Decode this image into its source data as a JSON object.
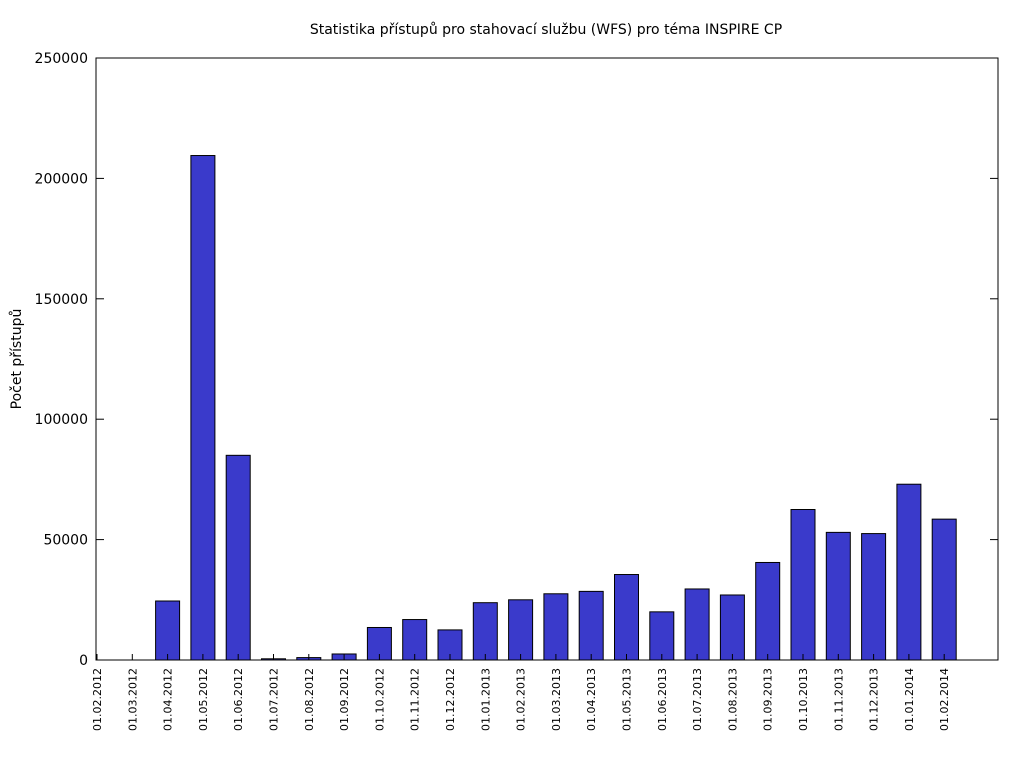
{
  "chart_data": {
    "type": "bar",
    "title": "Statistika přístupů pro stahovací službu (WFS) pro téma INSPIRE CP",
    "xlabel": "",
    "ylabel": "Počet přístupů",
    "ylim": [
      0,
      250000
    ],
    "yticks": [
      "0",
      "50000",
      "100000",
      "150000",
      "200000",
      "250000"
    ],
    "grid": false,
    "bar_color": "#3a3acb",
    "categories": [
      "01.02.2012",
      "01.03.2012",
      "01.04.2012",
      "01.05.2012",
      "01.06.2012",
      "01.07.2012",
      "01.08.2012",
      "01.09.2012",
      "01.10.2012",
      "01.11.2012",
      "01.12.2012",
      "01.01.2013",
      "01.02.2013",
      "01.03.2013",
      "01.04.2013",
      "01.05.2013",
      "01.06.2013",
      "01.07.2013",
      "01.08.2013",
      "01.09.2013",
      "01.10.2013",
      "01.11.2013",
      "01.12.2013",
      "01.01.2014",
      "01.02.2014"
    ],
    "values": [
      0,
      0,
      24500,
      209500,
      85000,
      500,
      1000,
      2500,
      13500,
      16800,
      12500,
      23800,
      25000,
      27500,
      28500,
      35500,
      20000,
      29500,
      27000,
      40500,
      62500,
      53000,
      52500,
      73000,
      58500
    ]
  }
}
